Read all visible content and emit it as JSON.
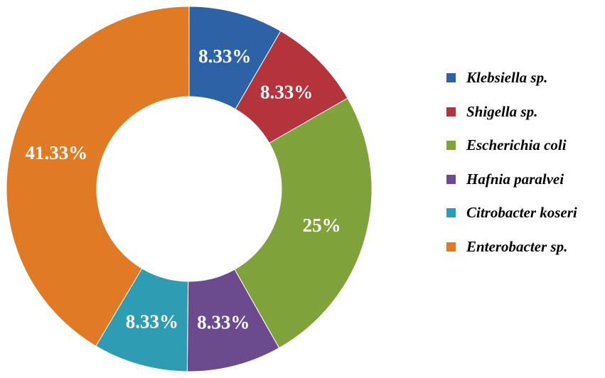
{
  "chart_data": {
    "type": "pie",
    "title": "",
    "legend_placement": "right",
    "slices": [
      {
        "name": "Klebsiella sp.",
        "value": 8.33,
        "label": "8.33%",
        "color": "#2E62A6"
      },
      {
        "name": "Shigella sp.",
        "value": 8.33,
        "label": "8.33%",
        "color": "#B5333A"
      },
      {
        "name": "Escherichia coli",
        "value": 25,
        "label": "25%",
        "color": "#7FA23A"
      },
      {
        "name": "Hafnia paralvei",
        "value": 8.33,
        "label": "8.33%",
        "color": "#6B4A8E"
      },
      {
        "name": "Citrobacter koseri",
        "value": 8.33,
        "label": "8.33%",
        "color": "#2E9DB3"
      },
      {
        "name": "Enterobacter sp.",
        "value": 41.33,
        "label": "41.33%",
        "color": "#E07A24"
      }
    ]
  }
}
